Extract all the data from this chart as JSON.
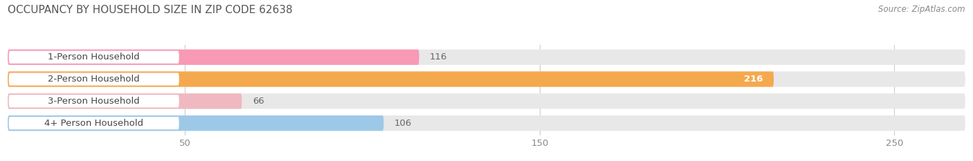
{
  "title": "OCCUPANCY BY HOUSEHOLD SIZE IN ZIP CODE 62638",
  "source": "Source: ZipAtlas.com",
  "categories": [
    "1-Person Household",
    "2-Person Household",
    "3-Person Household",
    "4+ Person Household"
  ],
  "values": [
    116,
    216,
    66,
    106
  ],
  "bar_colors": [
    "#f899b5",
    "#f5a94e",
    "#f0b8c0",
    "#9ec8e8"
  ],
  "bar_bg_color": "#e8e8e8",
  "label_bg_color": "#ffffff",
  "xmin": 0,
  "xmax": 270,
  "xticks": [
    50,
    150,
    250
  ],
  "title_fontsize": 11,
  "source_fontsize": 8.5,
  "label_fontsize": 9.5,
  "value_fontsize": 9.5,
  "tick_fontsize": 9.5,
  "background_color": "#ffffff",
  "bar_height": 0.7,
  "value_color_inside": "#ffffff",
  "value_color_outside": "#666666"
}
